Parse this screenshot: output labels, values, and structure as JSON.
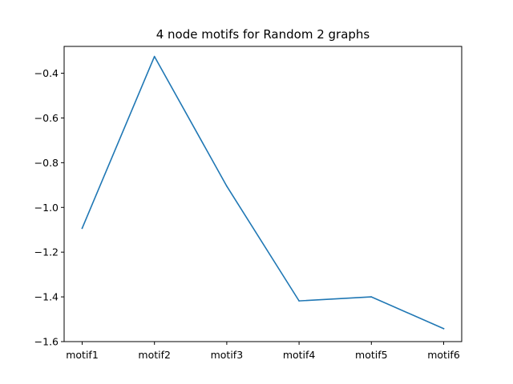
{
  "chart_data": {
    "type": "line",
    "title": "4 node motifs for Random 2 graphs",
    "xlabel": "",
    "ylabel": "",
    "categories": [
      "motif1",
      "motif2",
      "motif3",
      "motif4",
      "motif5",
      "motif6"
    ],
    "series": [
      {
        "values": [
          -1.093,
          -0.325,
          -0.905,
          -1.418,
          -1.4,
          -1.542
        ],
        "color": "#1f77b4"
      }
    ],
    "ylim": [
      -1.6,
      -0.28
    ],
    "yticks": [
      -1.6,
      -1.4,
      -1.2,
      -1.0,
      -0.8,
      -0.6,
      -0.4
    ],
    "ytick_labels": [
      "−1.6",
      "−1.4",
      "−1.2",
      "−1.0",
      "−0.8",
      "−0.6",
      "−0.4"
    ],
    "grid": false,
    "legend": "none"
  }
}
